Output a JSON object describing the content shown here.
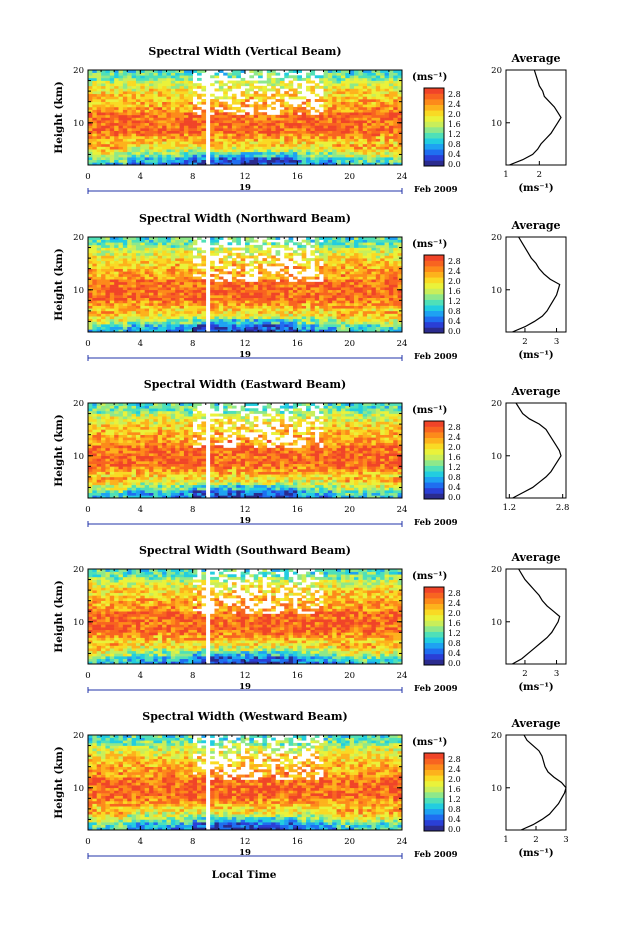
{
  "figure": {
    "xaxis_title": "Local Time",
    "date_label": "Feb 2009",
    "day_label": "19"
  },
  "colorbar": {
    "unit_label": "(ms⁻¹)",
    "ticks": [
      "2.8",
      "2.4",
      "2.0",
      "1.6",
      "1.2",
      "0.8",
      "0.4",
      "0.0"
    ],
    "colors": [
      "#2b2b8e",
      "#2a3fd6",
      "#1f6ef0",
      "#1ea2f2",
      "#22cde0",
      "#4fe0b8",
      "#8ee88a",
      "#c9ee5a",
      "#eaf23a",
      "#f9da24",
      "#fdb21c",
      "#fd8a1a",
      "#f86420",
      "#f04428"
    ]
  },
  "chart_data": [
    {
      "type": "heatmap",
      "title": "Spectral Width (Vertical Beam)",
      "ylabel": "Height (km)",
      "xlim": [
        0,
        24
      ],
      "ylim": [
        2,
        20
      ],
      "xticks": [
        0,
        4,
        8,
        12,
        16,
        20,
        24
      ],
      "yticks": [
        10,
        20
      ],
      "color_range": [
        0.0,
        2.8
      ],
      "profile": {
        "title": "Average",
        "xlabel": "(ms⁻¹)",
        "xlim": [
          1.0,
          2.8
        ],
        "xtick_labels": [
          {
            "v": 1.0,
            "t": "1"
          },
          {
            "v": 2.0,
            "t": "2"
          }
        ],
        "heights": [
          2,
          3,
          4,
          5,
          6,
          7,
          8,
          9,
          10,
          11,
          12,
          13,
          14,
          15,
          16,
          17,
          18,
          19,
          20
        ],
        "values": [
          1.1,
          1.5,
          1.8,
          1.95,
          2.05,
          2.2,
          2.35,
          2.45,
          2.55,
          2.65,
          2.55,
          2.45,
          2.3,
          2.15,
          2.1,
          2.0,
          1.95,
          1.9,
          1.85
        ]
      }
    },
    {
      "type": "heatmap",
      "title": "Spectral Width (Northward Beam)",
      "ylabel": "Height (km)",
      "xlim": [
        0,
        24
      ],
      "ylim": [
        2,
        20
      ],
      "xticks": [
        0,
        4,
        8,
        12,
        16,
        20,
        24
      ],
      "yticks": [
        10,
        20
      ],
      "color_range": [
        0.0,
        2.8
      ],
      "profile": {
        "title": "Average",
        "xlabel": "(ms⁻¹)",
        "xlim": [
          1.4,
          3.3
        ],
        "xtick_labels": [
          {
            "v": 2.0,
            "t": "2"
          },
          {
            "v": 3.0,
            "t": "3"
          }
        ],
        "heights": [
          2,
          3,
          4,
          5,
          6,
          7,
          8,
          9,
          10,
          11,
          12,
          13,
          14,
          15,
          16,
          17,
          18,
          19,
          20
        ],
        "values": [
          1.6,
          2.0,
          2.3,
          2.55,
          2.7,
          2.8,
          2.9,
          3.0,
          3.05,
          3.1,
          2.8,
          2.6,
          2.45,
          2.35,
          2.2,
          2.1,
          2.0,
          1.9,
          1.8
        ]
      }
    },
    {
      "type": "heatmap",
      "title": "Spectral Width (Eastward Beam)",
      "ylabel": "Height (km)",
      "xlim": [
        0,
        24
      ],
      "ylim": [
        2,
        20
      ],
      "xticks": [
        0,
        4,
        8,
        12,
        16,
        20,
        24
      ],
      "yticks": [
        10,
        20
      ],
      "color_range": [
        0.0,
        2.8
      ],
      "profile": {
        "title": "Average",
        "xlabel": "",
        "xlim": [
          1.1,
          2.9
        ],
        "xtick_labels": [
          {
            "v": 1.2,
            "t": "1.2"
          },
          {
            "v": 2.8,
            "t": "2.8"
          }
        ],
        "heights": [
          2,
          3,
          4,
          5,
          6,
          7,
          8,
          9,
          10,
          11,
          12,
          13,
          14,
          15,
          16,
          17,
          18,
          19,
          20
        ],
        "values": [
          1.3,
          1.6,
          1.9,
          2.1,
          2.3,
          2.45,
          2.55,
          2.65,
          2.75,
          2.7,
          2.6,
          2.5,
          2.4,
          2.3,
          2.1,
          1.8,
          1.6,
          1.5,
          1.4
        ]
      }
    },
    {
      "type": "heatmap",
      "title": "Spectral Width (Southward Beam)",
      "ylabel": "Height (km)",
      "xlim": [
        0,
        24
      ],
      "ylim": [
        2,
        20
      ],
      "xticks": [
        0,
        4,
        8,
        12,
        16,
        20,
        24
      ],
      "yticks": [
        10,
        20
      ],
      "color_range": [
        0.0,
        2.8
      ],
      "profile": {
        "title": "Average",
        "xlabel": "(ms⁻¹)",
        "xlim": [
          1.4,
          3.3
        ],
        "xtick_labels": [
          {
            "v": 2.0,
            "t": "2"
          },
          {
            "v": 3.0,
            "t": "3"
          }
        ],
        "heights": [
          2,
          3,
          4,
          5,
          6,
          7,
          8,
          9,
          10,
          11,
          12,
          13,
          14,
          15,
          16,
          17,
          18,
          19,
          20
        ],
        "values": [
          1.6,
          1.9,
          2.1,
          2.3,
          2.5,
          2.7,
          2.85,
          2.95,
          3.05,
          3.1,
          2.9,
          2.7,
          2.55,
          2.45,
          2.3,
          2.15,
          2.0,
          1.9,
          1.8
        ]
      }
    },
    {
      "type": "heatmap",
      "title": "Spectral Width (Westward Beam)",
      "ylabel": "Height (km)",
      "xlim": [
        0,
        24
      ],
      "ylim": [
        2,
        20
      ],
      "xticks": [
        0,
        4,
        8,
        12,
        16,
        20,
        24
      ],
      "yticks": [
        10,
        20
      ],
      "color_range": [
        0.0,
        2.8
      ],
      "profile": {
        "title": "Average",
        "xlabel": "(ms⁻¹)",
        "xlim": [
          1.0,
          3.0
        ],
        "xtick_labels": [
          {
            "v": 1.0,
            "t": "1"
          },
          {
            "v": 2.0,
            "t": "2"
          },
          {
            "v": 3.0,
            "t": "3"
          }
        ],
        "heights": [
          2,
          3,
          4,
          5,
          6,
          7,
          8,
          9,
          10,
          11,
          12,
          13,
          14,
          15,
          16,
          17,
          18,
          19,
          20
        ],
        "values": [
          1.5,
          1.9,
          2.2,
          2.45,
          2.6,
          2.75,
          2.85,
          2.95,
          3.0,
          2.85,
          2.6,
          2.4,
          2.3,
          2.25,
          2.2,
          2.1,
          1.9,
          1.7,
          1.6
        ]
      }
    }
  ]
}
